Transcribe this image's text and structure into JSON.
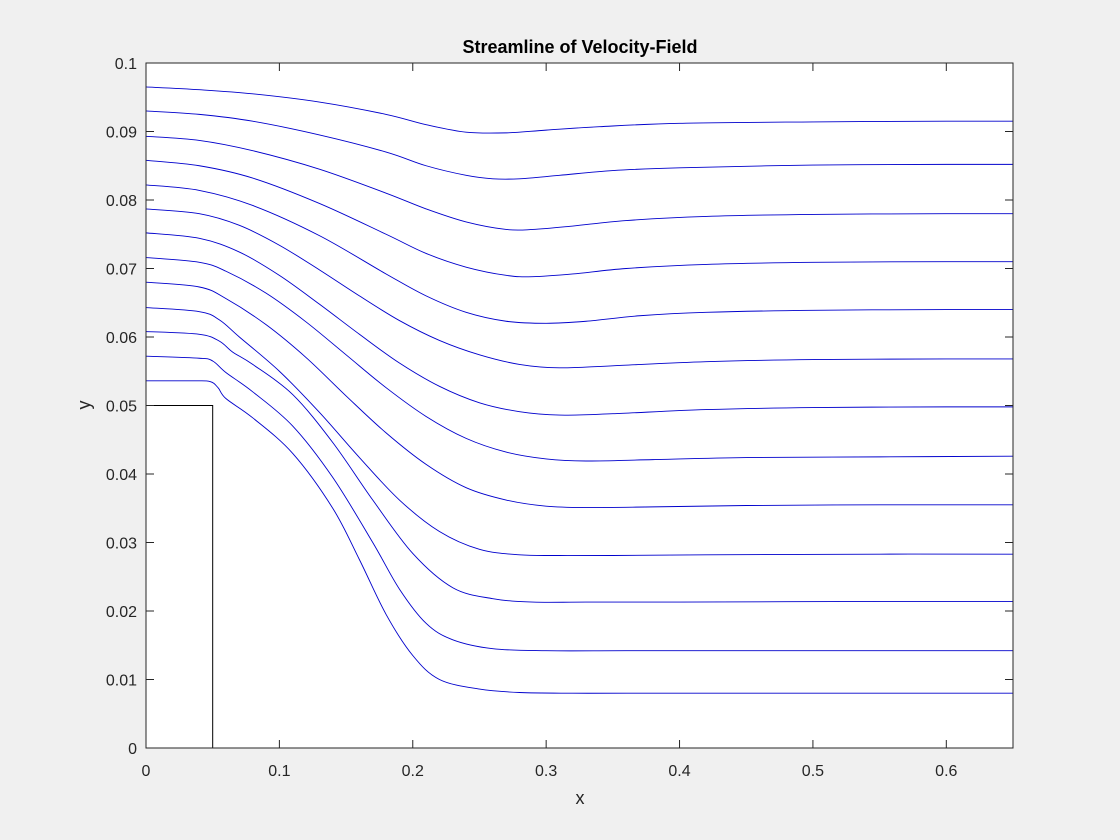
{
  "chart_data": {
    "type": "line",
    "title": "Streamline of Velocity-Field",
    "xlabel": "x",
    "ylabel": "y",
    "xlim": [
      0,
      0.65
    ],
    "ylim": [
      0,
      0.1
    ],
    "xticks": [
      0,
      0.1,
      0.2,
      0.3,
      0.4,
      0.5,
      0.6
    ],
    "xtick_labels": [
      "0",
      "0.1",
      "0.2",
      "0.3",
      "0.4",
      "0.5",
      "0.6"
    ],
    "yticks": [
      0,
      0.01,
      0.02,
      0.03,
      0.04,
      0.05,
      0.06,
      0.07,
      0.08,
      0.09,
      0.1
    ],
    "ytick_labels": [
      "0",
      "0.01",
      "0.02",
      "0.03",
      "0.04",
      "0.05",
      "0.06",
      "0.07",
      "0.08",
      "0.09",
      "0.1"
    ],
    "grid": false,
    "colors": {
      "streamline": "#0000cc",
      "obstacle": "#000000",
      "axes": "#262626"
    },
    "obstacle": {
      "x": [
        0,
        0.05,
        0.05
      ],
      "y": [
        0.05,
        0.05,
        0
      ]
    },
    "series": [
      {
        "x": [
          0,
          0.04,
          0.08,
          0.13,
          0.18,
          0.21,
          0.24,
          0.27,
          0.3,
          0.34,
          0.4,
          0.5,
          0.6,
          0.65
        ],
        "y": [
          0.0965,
          0.0961,
          0.0955,
          0.0943,
          0.0925,
          0.091,
          0.0899,
          0.0898,
          0.0902,
          0.0907,
          0.0912,
          0.0914,
          0.0915,
          0.0915
        ]
      },
      {
        "x": [
          0,
          0.04,
          0.08,
          0.13,
          0.18,
          0.21,
          0.24,
          0.26,
          0.28,
          0.31,
          0.35,
          0.4,
          0.5,
          0.6,
          0.65
        ],
        "y": [
          0.093,
          0.0925,
          0.0915,
          0.0895,
          0.087,
          0.085,
          0.0836,
          0.0831,
          0.0831,
          0.0836,
          0.0843,
          0.0847,
          0.0851,
          0.0852,
          0.0852
        ]
      },
      {
        "x": [
          0,
          0.04,
          0.08,
          0.13,
          0.18,
          0.21,
          0.24,
          0.27,
          0.29,
          0.32,
          0.36,
          0.42,
          0.5,
          0.6,
          0.65
        ],
        "y": [
          0.0893,
          0.0887,
          0.0872,
          0.0845,
          0.081,
          0.0787,
          0.0768,
          0.0757,
          0.0757,
          0.0762,
          0.077,
          0.0776,
          0.0779,
          0.078,
          0.078
        ]
      },
      {
        "x": [
          0,
          0.04,
          0.08,
          0.13,
          0.18,
          0.21,
          0.24,
          0.27,
          0.29,
          0.32,
          0.36,
          0.42,
          0.5,
          0.6,
          0.65
        ],
        "y": [
          0.0858,
          0.085,
          0.0832,
          0.0795,
          0.075,
          0.0722,
          0.0702,
          0.069,
          0.0688,
          0.0692,
          0.07,
          0.0706,
          0.0709,
          0.071,
          0.071
        ]
      },
      {
        "x": [
          0,
          0.04,
          0.08,
          0.13,
          0.18,
          0.21,
          0.24,
          0.27,
          0.3,
          0.33,
          0.37,
          0.42,
          0.5,
          0.6,
          0.65
        ],
        "y": [
          0.0822,
          0.0814,
          0.0792,
          0.0748,
          0.0692,
          0.066,
          0.0636,
          0.0623,
          0.062,
          0.0623,
          0.0631,
          0.0636,
          0.0639,
          0.064,
          0.064
        ]
      },
      {
        "x": [
          0,
          0.04,
          0.07,
          0.1,
          0.13,
          0.16,
          0.19,
          0.22,
          0.25,
          0.28,
          0.31,
          0.35,
          0.42,
          0.5,
          0.6,
          0.65
        ],
        "y": [
          0.0787,
          0.078,
          0.0763,
          0.0734,
          0.0698,
          0.066,
          0.0624,
          0.0595,
          0.0574,
          0.056,
          0.0555,
          0.0558,
          0.0564,
          0.0567,
          0.0568,
          0.0568
        ]
      },
      {
        "x": [
          0,
          0.04,
          0.07,
          0.1,
          0.13,
          0.16,
          0.19,
          0.22,
          0.25,
          0.28,
          0.31,
          0.35,
          0.42,
          0.5,
          0.6,
          0.65
        ],
        "y": [
          0.0752,
          0.0744,
          0.0724,
          0.069,
          0.0648,
          0.0604,
          0.0562,
          0.0528,
          0.0504,
          0.0491,
          0.0486,
          0.0488,
          0.0494,
          0.0497,
          0.0498,
          0.0498
        ]
      },
      {
        "x": [
          0,
          0.04,
          0.06,
          0.09,
          0.12,
          0.15,
          0.18,
          0.21,
          0.24,
          0.27,
          0.3,
          0.33,
          0.38,
          0.45,
          0.55,
          0.65
        ],
        "y": [
          0.0716,
          0.0709,
          0.0696,
          0.0664,
          0.0622,
          0.0574,
          0.0526,
          0.0484,
          0.0452,
          0.0432,
          0.0422,
          0.0419,
          0.0421,
          0.0424,
          0.0425,
          0.0426
        ]
      },
      {
        "x": [
          0,
          0.04,
          0.06,
          0.09,
          0.12,
          0.15,
          0.18,
          0.21,
          0.24,
          0.27,
          0.3,
          0.33,
          0.38,
          0.45,
          0.55,
          0.65
        ],
        "y": [
          0.068,
          0.0673,
          0.0656,
          0.0618,
          0.057,
          0.0514,
          0.046,
          0.0414,
          0.038,
          0.0362,
          0.0353,
          0.0351,
          0.0352,
          0.0354,
          0.0355,
          0.0355
        ]
      },
      {
        "x": [
          0,
          0.04,
          0.055,
          0.07,
          0.1,
          0.13,
          0.16,
          0.19,
          0.22,
          0.25,
          0.28,
          0.31,
          0.35,
          0.42,
          0.55,
          0.65
        ],
        "y": [
          0.0643,
          0.0637,
          0.0625,
          0.06,
          0.055,
          0.049,
          0.0424,
          0.0362,
          0.0316,
          0.029,
          0.0282,
          0.0281,
          0.0281,
          0.0282,
          0.0283,
          0.0283
        ]
      },
      {
        "x": [
          0,
          0.04,
          0.055,
          0.065,
          0.08,
          0.11,
          0.14,
          0.17,
          0.2,
          0.23,
          0.26,
          0.29,
          0.33,
          0.4,
          0.55,
          0.65
        ],
        "y": [
          0.0608,
          0.0604,
          0.0594,
          0.0578,
          0.056,
          0.0516,
          0.0446,
          0.0362,
          0.0284,
          0.0234,
          0.0218,
          0.0213,
          0.0213,
          0.0213,
          0.0214,
          0.0214
        ]
      },
      {
        "x": [
          0,
          0.04,
          0.05,
          0.06,
          0.08,
          0.11,
          0.14,
          0.17,
          0.19,
          0.21,
          0.23,
          0.26,
          0.3,
          0.36,
          0.45,
          0.55,
          0.65
        ],
        "y": [
          0.0572,
          0.0569,
          0.0565,
          0.0548,
          0.052,
          0.047,
          0.0395,
          0.03,
          0.0232,
          0.0182,
          0.0158,
          0.0145,
          0.0142,
          0.0142,
          0.0142,
          0.0142,
          0.0142
        ]
      },
      {
        "x": [
          0,
          0.035,
          0.048,
          0.054,
          0.06,
          0.08,
          0.11,
          0.14,
          0.16,
          0.18,
          0.2,
          0.22,
          0.25,
          0.28,
          0.32,
          0.36,
          0.45,
          0.55,
          0.65
        ],
        "y": [
          0.0536,
          0.0536,
          0.0535,
          0.0526,
          0.051,
          0.0482,
          0.043,
          0.035,
          0.0275,
          0.0195,
          0.0135,
          0.01,
          0.0086,
          0.0081,
          0.008,
          0.008,
          0.008,
          0.008,
          0.008
        ]
      }
    ]
  }
}
